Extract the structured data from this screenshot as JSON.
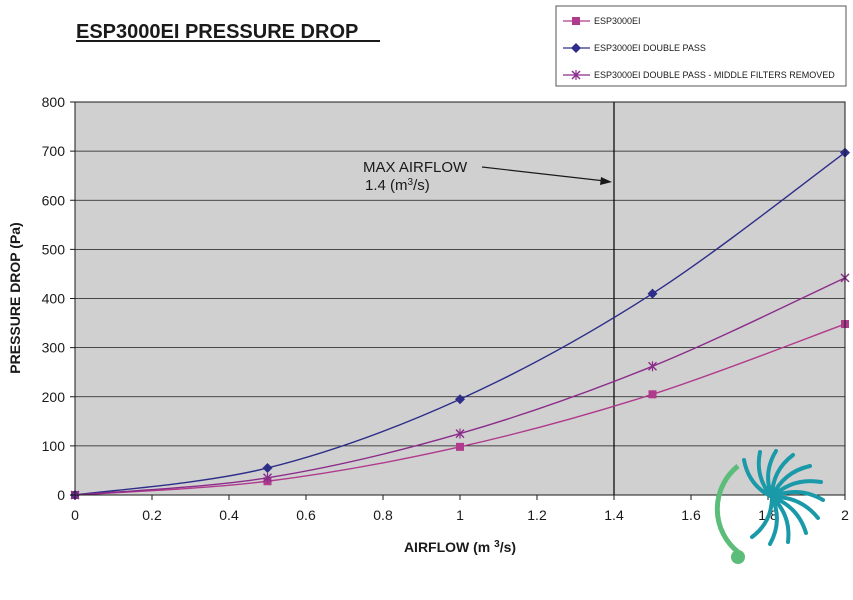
{
  "chart_data": {
    "type": "line",
    "title": "ESP3000EI PRESSURE DROP",
    "xlabel_main": "AIRFLOW (m ",
    "xlabel_sup": "3",
    "xlabel_end": "/s)",
    "ylabel": "PRESSURE DROP (Pa)",
    "xlim": [
      0,
      2
    ],
    "ylim": [
      0,
      800
    ],
    "x_ticks": [
      0,
      0.2,
      0.4,
      0.6,
      0.8,
      1,
      1.2,
      1.4,
      1.6,
      1.8,
      2
    ],
    "x_tick_labels": [
      "0",
      "0.2",
      "0.4",
      "0.6",
      "0.8",
      "1",
      "1.2",
      "1.4",
      "1.6",
      "1.8",
      "2"
    ],
    "y_ticks": [
      0,
      100,
      200,
      300,
      400,
      500,
      600,
      700,
      800
    ],
    "y_tick_labels": [
      "0",
      "100",
      "200",
      "300",
      "400",
      "500",
      "600",
      "700",
      "800"
    ],
    "grid": "horizontal",
    "plot_background": "#d0d0d0",
    "legend_position": "top-right",
    "series": [
      {
        "name": "ESP3000EI",
        "color": "#b03a8c",
        "marker": "square",
        "x": [
          0,
          0.5,
          1,
          1.5,
          2
        ],
        "y": [
          0,
          28,
          98,
          205,
          348
        ]
      },
      {
        "name": "ESP3000EI DOUBLE PASS",
        "color": "#2e2e8a",
        "marker": "diamond",
        "x": [
          0,
          0.5,
          1,
          1.5,
          2
        ],
        "y": [
          0,
          55,
          195,
          410,
          697
        ]
      },
      {
        "name": "ESP3000EI DOUBLE PASS  - MIDDLE FILTERS REMOVED",
        "color": "#8a2c8a",
        "marker": "star",
        "x": [
          0,
          0.5,
          1,
          1.5,
          2
        ],
        "y": [
          0,
          35,
          125,
          262,
          442
        ]
      }
    ],
    "reference_line": {
      "x": 1.4,
      "color": "#000000"
    },
    "annotation": {
      "line1": "MAX AIRFLOW",
      "line2_main": "1.4 (m",
      "line2_sup": "3",
      "line2_end": "/s)",
      "arrow_target_x": 1.4,
      "arrow_target_y": 636
    }
  },
  "logo": {
    "primary_color": "#1a9aa8",
    "secondary_color": "#5cbd7a"
  }
}
